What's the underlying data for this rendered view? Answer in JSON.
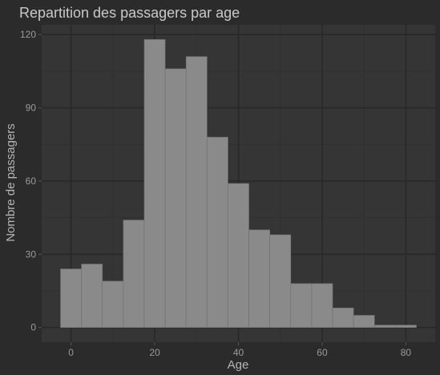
{
  "chart_data": {
    "type": "bar",
    "title": "Repartition des passagers par age",
    "xlabel": "Age",
    "ylabel": "Nombre de passagers",
    "bin_width": 5,
    "x_start": -2.5,
    "values": [
      24,
      26,
      19,
      44,
      118,
      106,
      111,
      78,
      59,
      40,
      38,
      18,
      18,
      8,
      5,
      1,
      1
    ],
    "xlim": [
      -7,
      87
    ],
    "ylim": [
      -6,
      124
    ],
    "x_ticks": [
      0,
      20,
      40,
      60,
      80
    ],
    "y_ticks": [
      0,
      30,
      60,
      90,
      120
    ],
    "grid": true,
    "colors": {
      "background": "#2b2b2b",
      "panel": "#353535",
      "grid_major": "#282828",
      "grid_minor": "#303030",
      "bar_fill": "#8a8a8a",
      "bar_stroke": "#6e6e6e"
    }
  }
}
